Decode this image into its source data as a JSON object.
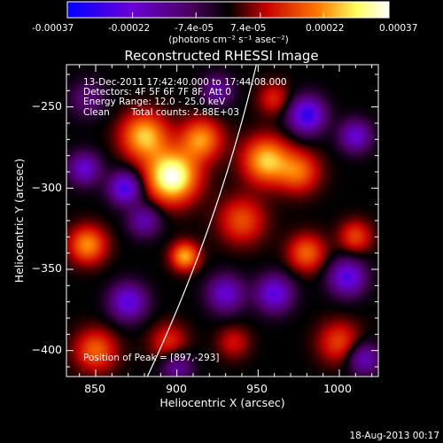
{
  "colorbar": {
    "tick_labels": [
      "-0.00037",
      "-0.00022",
      "-7.4e-05",
      "7.4e-05",
      "0.00022",
      "0.00037"
    ],
    "tick_values": [
      -0.00037,
      -0.00022,
      -7.4e-05,
      7.4e-05,
      0.00022,
      0.00037
    ],
    "range": [
      -0.00037,
      0.00037
    ],
    "unit": "(photons cm⁻² s⁻¹ asec⁻²)"
  },
  "chart_data": {
    "type": "heatmap",
    "title": "Reconstructed RHESSI Image",
    "xlabel": "Heliocentric X (arcsec)",
    "ylabel": "Heliocentric Y (arcsec)",
    "xlim": [
      832,
      1024
    ],
    "ylim": [
      -416,
      -224
    ],
    "x_ticks": [
      850,
      900,
      950,
      1000
    ],
    "y_ticks": [
      -250,
      -300,
      -350,
      -400
    ],
    "x_tick_labels": [
      "850",
      "900",
      "950",
      "1000"
    ],
    "y_tick_labels": [
      "−250",
      "−300",
      "−350",
      "−400"
    ],
    "grid": false,
    "colormap": [
      "#0000ff",
      "#6a00d8",
      "#4b0060",
      "#000000",
      "#c80000",
      "#ff7a00",
      "#ffff60",
      "#ffffff"
    ],
    "sources": [
      {
        "x": 897,
        "y": -293,
        "amp": 0.00037,
        "sigma": 11
      },
      {
        "x": 880,
        "y": -268,
        "amp": 0.00026,
        "sigma": 10
      },
      {
        "x": 915,
        "y": -270,
        "amp": 0.00022,
        "sigma": 9
      },
      {
        "x": 955,
        "y": -283,
        "amp": 0.00026,
        "sigma": 10
      },
      {
        "x": 975,
        "y": -290,
        "amp": 0.00018,
        "sigma": 9
      },
      {
        "x": 940,
        "y": -320,
        "amp": 0.00016,
        "sigma": 10
      },
      {
        "x": 845,
        "y": -335,
        "amp": 0.00022,
        "sigma": 8
      },
      {
        "x": 905,
        "y": -342,
        "amp": 0.00024,
        "sigma": 6
      },
      {
        "x": 980,
        "y": -340,
        "amp": 0.00018,
        "sigma": 8
      },
      {
        "x": 1010,
        "y": -330,
        "amp": 0.00015,
        "sigma": 7
      },
      {
        "x": 850,
        "y": -400,
        "amp": 0.00018,
        "sigma": 9
      },
      {
        "x": 895,
        "y": -395,
        "amp": 0.00013,
        "sigma": 8
      },
      {
        "x": 935,
        "y": -395,
        "amp": 0.0001,
        "sigma": 7
      },
      {
        "x": 1000,
        "y": -395,
        "amp": 0.00015,
        "sigma": 9
      },
      {
        "x": 960,
        "y": -245,
        "amp": 0.00012,
        "sigma": 7
      },
      {
        "x": 868,
        "y": -300,
        "amp": -0.00028,
        "sigma": 7
      },
      {
        "x": 843,
        "y": -288,
        "amp": -0.00022,
        "sigma": 7
      },
      {
        "x": 980,
        "y": -255,
        "amp": -0.0003,
        "sigma": 8
      },
      {
        "x": 1010,
        "y": -268,
        "amp": -0.00022,
        "sigma": 7
      },
      {
        "x": 1005,
        "y": -355,
        "amp": -0.00026,
        "sigma": 8
      },
      {
        "x": 960,
        "y": -365,
        "amp": -0.00025,
        "sigma": 8
      },
      {
        "x": 880,
        "y": -320,
        "amp": -0.00018,
        "sigma": 7
      },
      {
        "x": 870,
        "y": -370,
        "amp": -0.00025,
        "sigma": 8
      },
      {
        "x": 930,
        "y": -365,
        "amp": -0.00022,
        "sigma": 8
      },
      {
        "x": 900,
        "y": -410,
        "amp": -0.00016,
        "sigma": 7
      },
      {
        "x": 1015,
        "y": -405,
        "amp": -0.0002,
        "sigma": 7
      },
      {
        "x": 925,
        "y": -240,
        "amp": -0.00016,
        "sigma": 7
      },
      {
        "x": 845,
        "y": -245,
        "amp": -0.00012,
        "sigma": 8
      }
    ],
    "limb_arc": {
      "center": [
        0,
        0
      ],
      "radius": 975
    },
    "annotations": {
      "time": "13-Dec-2011 17:42:40.000 to 17:44:08.000",
      "detectors": "Detectors: 4F 5F 6F 7F 8F, Att 0",
      "energy": "Energy Range: 12.0 - 25.0 keV",
      "method": "Clean",
      "counts": "Total counts: 2.88E+03",
      "peak": "Position of Peak = [897,-293]"
    }
  },
  "footer": {
    "date": "18-Aug-2013 00:17"
  }
}
